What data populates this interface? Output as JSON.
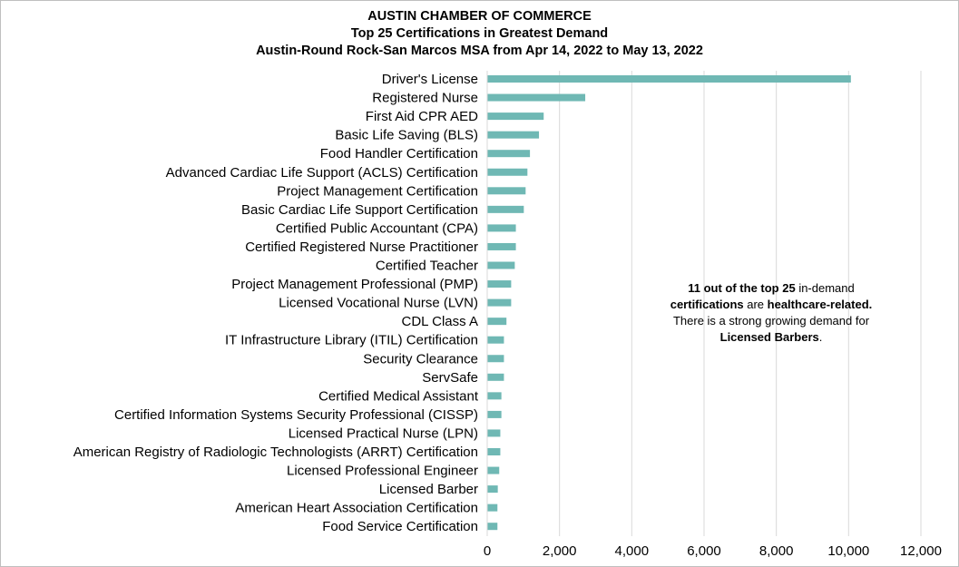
{
  "titles": {
    "line1": "AUSTIN CHAMBER OF COMMERCE",
    "line2": "Top 25 Certifications in Greatest Demand",
    "line3": "Austin-Round Rock-San Marcos MSA from Apr 14, 2022 to May 13, 2022"
  },
  "annotation": {
    "p1_bold": "11 out of the top 25",
    "p1_text": " in-demand ",
    "p2_bold": "certifications",
    "p2_text": " are ",
    "p3_bold": "healthcare-related.",
    "p4_text": "There is a strong growing demand for",
    "p5_bold": "Licensed Barbers",
    "p5_text": "."
  },
  "chart_data": {
    "type": "bar",
    "orientation": "horizontal",
    "title": "Top 25 Certifications in Greatest Demand",
    "categories": [
      "Driver's License",
      "Registered Nurse",
      "First Aid CPR AED",
      "Basic Life Saving (BLS)",
      "Food Handler Certification",
      "Advanced Cardiac Life Support (ACLS) Certification",
      "Project Management Certification",
      "Basic Cardiac Life Support Certification",
      "Certified Public Accountant (CPA)",
      "Certified Registered Nurse Practitioner",
      "Certified Teacher",
      "Project Management Professional (PMP)",
      "Licensed Vocational Nurse (LVN)",
      "CDL Class A",
      "IT Infrastructure Library (ITIL) Certification",
      "Security Clearance",
      "ServSafe",
      "Certified Medical Assistant",
      "Certified Information Systems Security Professional (CISSP)",
      "Licensed Practical Nurse (LPN)",
      "American Registry of Radiologic Technologists (ARRT) Certification",
      "Licensed Professional Engineer",
      "Licensed Barber",
      "American Heart Association Certification",
      "Food Service Certification"
    ],
    "values": [
      10050,
      2700,
      1550,
      1420,
      1170,
      1100,
      1050,
      1000,
      780,
      780,
      750,
      650,
      650,
      520,
      450,
      450,
      450,
      380,
      380,
      350,
      350,
      320,
      280,
      270,
      270
    ],
    "xlim": [
      0,
      12000
    ],
    "xticks": [
      0,
      2000,
      4000,
      6000,
      8000,
      10000,
      12000
    ],
    "xtick_labels": [
      "0",
      "2,000",
      "4,000",
      "6,000",
      "8,000",
      "10,000",
      "12,000"
    ],
    "grid": "vertical",
    "legend": "none",
    "bar_color": "#6fb8b4",
    "grid_color": "#d9d9d9"
  }
}
